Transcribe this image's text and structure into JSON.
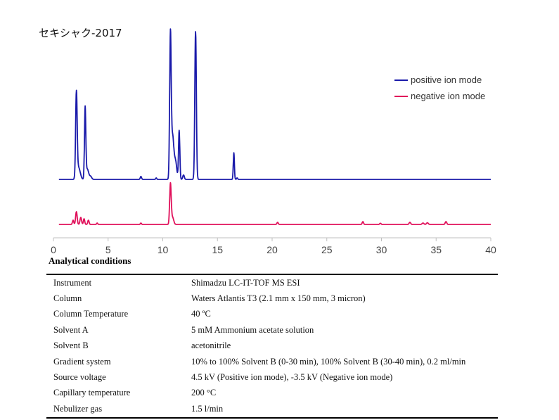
{
  "chart_data": {
    "type": "line",
    "title": "セキシャク-2017",
    "xlabel": "",
    "ylabel": "",
    "xlim": [
      0,
      40
    ],
    "x_ticks": [
      0,
      5,
      10,
      15,
      20,
      25,
      30,
      35,
      40
    ],
    "legend_position": "top-right",
    "grid": false,
    "series": [
      {
        "name": "positive ion mode",
        "color": "#1a1aaa",
        "baseline_offset": 0,
        "peaks": [
          {
            "rt": 2.1,
            "height": 0.57,
            "width": 0.07
          },
          {
            "rt": 2.3,
            "height": 0.08,
            "width": 0.15
          },
          {
            "rt": 2.9,
            "height": 0.48,
            "width": 0.06
          },
          {
            "rt": 3.1,
            "height": 0.07,
            "width": 0.12
          },
          {
            "rt": 3.4,
            "height": 0.02,
            "width": 0.1
          },
          {
            "rt": 8.0,
            "height": 0.02,
            "width": 0.06
          },
          {
            "rt": 9.4,
            "height": 0.01,
            "width": 0.05
          },
          {
            "rt": 10.7,
            "height": 0.98,
            "width": 0.07
          },
          {
            "rt": 10.9,
            "height": 0.28,
            "width": 0.1
          },
          {
            "rt": 11.15,
            "height": 0.13,
            "width": 0.12
          },
          {
            "rt": 11.5,
            "height": 0.33,
            "width": 0.06
          },
          {
            "rt": 11.9,
            "height": 0.03,
            "width": 0.07
          },
          {
            "rt": 13.0,
            "height": 1.0,
            "width": 0.07
          },
          {
            "rt": 16.5,
            "height": 0.18,
            "width": 0.05
          },
          {
            "rt": 16.8,
            "height": 0.01,
            "width": 0.05
          }
        ]
      },
      {
        "name": "negative ion mode",
        "color": "#e0105a",
        "baseline_offset": 0,
        "peaks": [
          {
            "rt": 1.8,
            "height": 0.03,
            "width": 0.06
          },
          {
            "rt": 2.1,
            "height": 0.09,
            "width": 0.07
          },
          {
            "rt": 2.5,
            "height": 0.05,
            "width": 0.07
          },
          {
            "rt": 2.8,
            "height": 0.04,
            "width": 0.06
          },
          {
            "rt": 3.2,
            "height": 0.03,
            "width": 0.06
          },
          {
            "rt": 4.0,
            "height": 0.01,
            "width": 0.05
          },
          {
            "rt": 8.0,
            "height": 0.01,
            "width": 0.05
          },
          {
            "rt": 10.7,
            "height": 0.29,
            "width": 0.07
          },
          {
            "rt": 10.9,
            "height": 0.05,
            "width": 0.1
          },
          {
            "rt": 20.5,
            "height": 0.015,
            "width": 0.06
          },
          {
            "rt": 28.3,
            "height": 0.02,
            "width": 0.06
          },
          {
            "rt": 29.9,
            "height": 0.008,
            "width": 0.06
          },
          {
            "rt": 32.6,
            "height": 0.015,
            "width": 0.07
          },
          {
            "rt": 33.8,
            "height": 0.01,
            "width": 0.08
          },
          {
            "rt": 34.2,
            "height": 0.012,
            "width": 0.08
          },
          {
            "rt": 35.9,
            "height": 0.02,
            "width": 0.07
          }
        ]
      }
    ]
  },
  "conditions": {
    "heading": "Analytical conditions",
    "rows": [
      {
        "label": "Instrument",
        "value": "Shimadzu LC-IT-TOF MS ESI"
      },
      {
        "label": "Column",
        "value": "Waters Atlantis T3 (2.1 mm x 150 mm, 3 micron)"
      },
      {
        "label": "Column Temperature",
        "value": "40 ºC"
      },
      {
        "label": "Solvent A",
        "value": "5 mM Ammonium acetate solution"
      },
      {
        "label": "Solvent B",
        "value": "acetonitrile"
      },
      {
        "label": "Gradient system",
        "value": "10% to 100% Solvent B (0-30 min), 100% Solvent B (30-40 min), 0.2 ml/min"
      },
      {
        "label": "Source voltage",
        "value": "4.5 kV (Positive ion mode), -3.5 kV (Negative ion mode)"
      },
      {
        "label": "Capillary temperature",
        "value": "200 °C"
      },
      {
        "label": "Nebulizer gas",
        "value": "1.5 l/min"
      }
    ]
  }
}
